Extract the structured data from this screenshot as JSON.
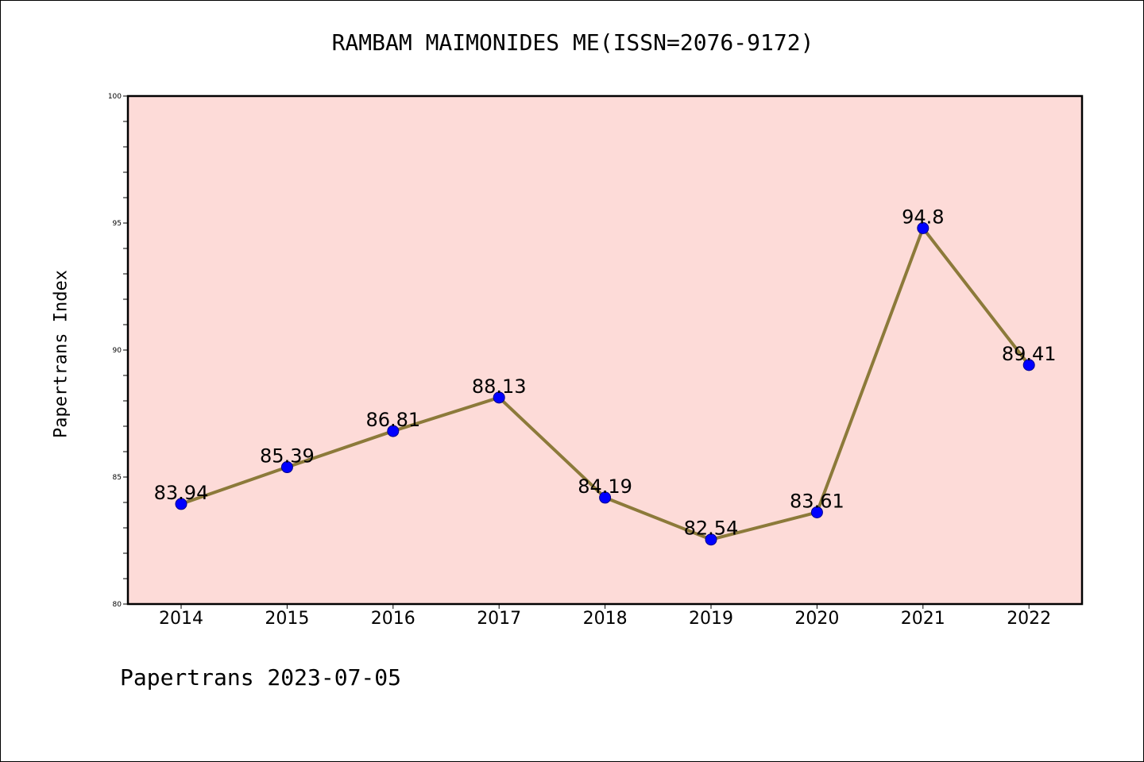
{
  "title": "RAMBAM MAIMONIDES ME(ISSN=2076-9172)",
  "footer": "Papertrans 2023-07-05",
  "chart_data": {
    "type": "line",
    "title": "RAMBAM MAIMONIDES ME(ISSN=2076-9172)",
    "xlabel": "",
    "ylabel": "Papertrans Index",
    "categories": [
      "2014",
      "2015",
      "2016",
      "2017",
      "2018",
      "2019",
      "2020",
      "2021",
      "2022"
    ],
    "values": [
      83.94,
      85.39,
      86.81,
      88.13,
      84.19,
      82.54,
      83.61,
      94.8,
      89.41
    ],
    "data_labels": [
      "83.94",
      "85.39",
      "86.81",
      "88.13",
      "84.19",
      "82.54",
      "83.61",
      "94.8",
      "89.41"
    ],
    "ylim": [
      80,
      100
    ],
    "yticks": [
      "80",
      "85",
      "90",
      "95",
      "100"
    ],
    "grid": false,
    "colors": {
      "plot_background": "#fddbd8",
      "line": "#8c7a3a",
      "marker": "#0000ff",
      "axis": "#000000"
    }
  }
}
